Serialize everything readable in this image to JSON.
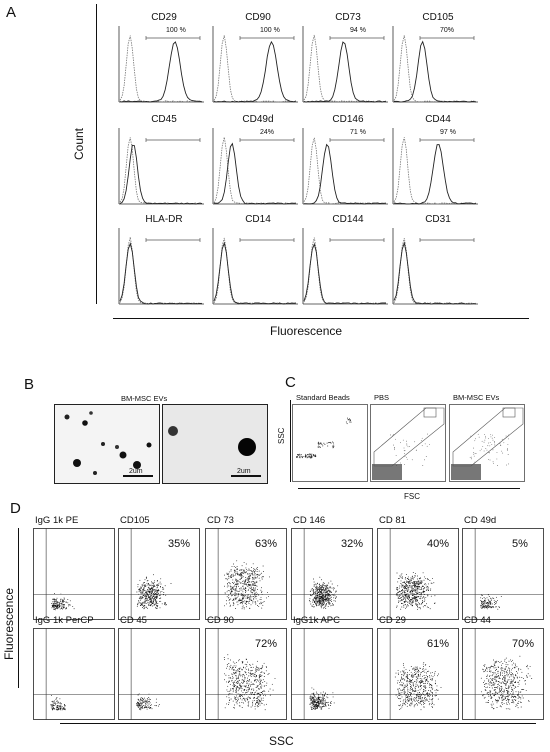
{
  "panel_a": {
    "letter": "A",
    "y_label": "Count",
    "x_label": "Fluorescence",
    "histograms": [
      {
        "marker": "CD29",
        "pct": "100 %"
      },
      {
        "marker": "CD90",
        "pct": "100 %"
      },
      {
        "marker": "CD73",
        "pct": "94 %"
      },
      {
        "marker": "CD105",
        "pct": "70%"
      },
      {
        "marker": "CD45",
        "pct": ""
      },
      {
        "marker": "CD49d",
        "pct": "24%"
      },
      {
        "marker": "CD146",
        "pct": "71 %"
      },
      {
        "marker": "CD44",
        "pct": "97 %"
      },
      {
        "marker": "HLA-DR",
        "pct": ""
      },
      {
        "marker": "CD14",
        "pct": ""
      },
      {
        "marker": "CD144",
        "pct": ""
      },
      {
        "marker": "CD31",
        "pct": ""
      }
    ]
  },
  "panel_b": {
    "letter": "B",
    "title": "BM-MSC EVs",
    "scale1": "2um",
    "scale2": "2um"
  },
  "panel_c": {
    "letter": "C",
    "plots": [
      "Standard Beads",
      "PBS",
      "BM-MSC EVs"
    ],
    "y_label": "SSC",
    "x_label": "FSC"
  },
  "panel_d": {
    "letter": "D",
    "y_label": "Fluorescence",
    "x_label": "SSC",
    "plots": [
      {
        "name": "IgG 1k PE",
        "pct": ""
      },
      {
        "name": "CD105",
        "pct": "35%"
      },
      {
        "name": "CD 73",
        "pct": "63%"
      },
      {
        "name": "CD 146",
        "pct": "32%"
      },
      {
        "name": "CD 81",
        "pct": "40%"
      },
      {
        "name": "CD 49d",
        "pct": "5%"
      },
      {
        "name": "IgG 1k PerCP",
        "pct": ""
      },
      {
        "name": "CD 45",
        "pct": ""
      },
      {
        "name": "CD 90",
        "pct": "72%"
      },
      {
        "name": "IgG1k APC",
        "pct": ""
      },
      {
        "name": "CD 29",
        "pct": "61%"
      },
      {
        "name": "CD 44",
        "pct": "70%"
      }
    ]
  }
}
